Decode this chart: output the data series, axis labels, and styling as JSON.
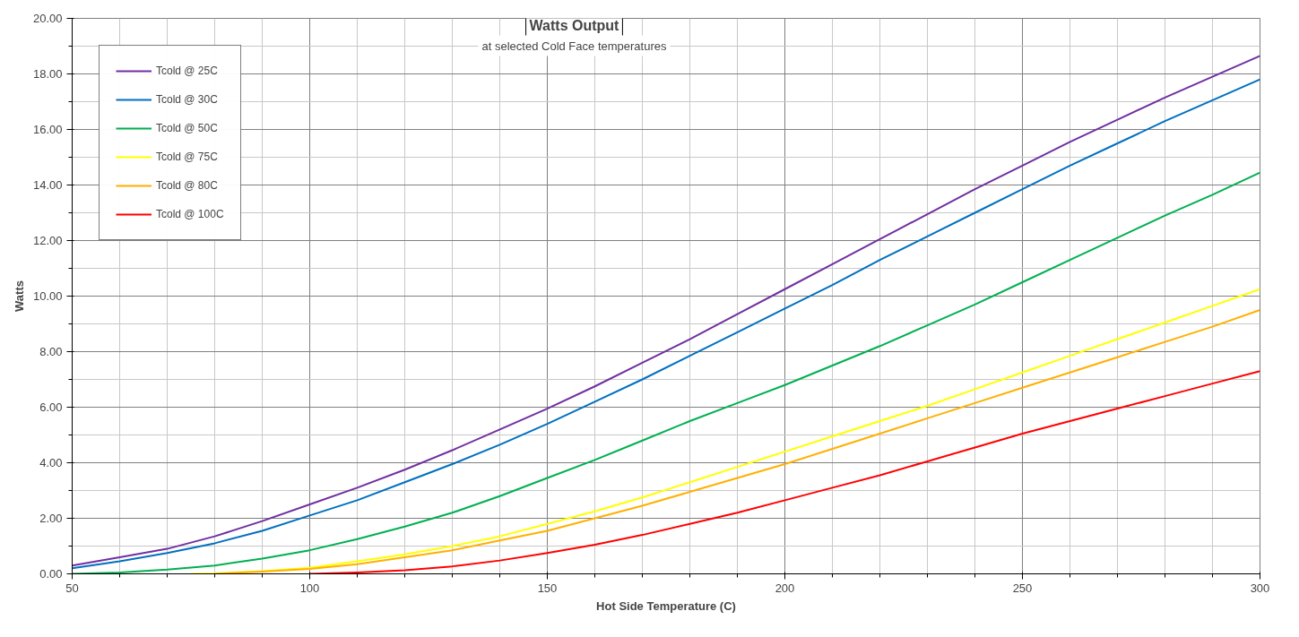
{
  "chart_data": {
    "type": "line",
    "title": "Watts Output",
    "subtitle": "at selected Cold Face temperatures",
    "xlabel": "Hot Side Temperature (C)",
    "ylabel": "Watts",
    "xlim": [
      50,
      300
    ],
    "xticks": [
      50,
      100,
      150,
      200,
      250,
      300
    ],
    "ylim": [
      0,
      20
    ],
    "yticks": [
      {
        "value": 0,
        "label": "0.00"
      },
      {
        "value": 2,
        "label": "2.00"
      },
      {
        "value": 4,
        "label": "4.00"
      },
      {
        "value": 6,
        "label": "6.00"
      },
      {
        "value": 8,
        "label": "8.00"
      },
      {
        "value": 10,
        "label": "10.00"
      },
      {
        "value": 12,
        "label": "12.00"
      },
      {
        "value": 14,
        "label": "14.00"
      },
      {
        "value": 16,
        "label": "16.00"
      },
      {
        "value": 18,
        "label": "18.00"
      },
      {
        "value": 20,
        "label": "20.00"
      }
    ],
    "grid": true,
    "legend": "top left",
    "marker": "none",
    "line_style": "solid",
    "series": [
      {
        "name": "Tcold @ 25C",
        "color": "#7030a0",
        "x": [
          50,
          60,
          70,
          80,
          90,
          100,
          110,
          120,
          130,
          140,
          150,
          160,
          170,
          180,
          190,
          200,
          210,
          220,
          230,
          240,
          250,
          260,
          270,
          280,
          290,
          300
        ],
        "values": [
          0.3,
          0.6,
          0.9,
          1.35,
          1.9,
          2.5,
          3.1,
          3.75,
          4.45,
          5.2,
          5.95,
          6.75,
          7.6,
          8.45,
          9.35,
          10.25,
          11.15,
          12.05,
          12.95,
          13.85,
          14.7,
          15.55,
          16.35,
          17.15,
          17.9,
          18.65
        ]
      },
      {
        "name": "Tcold @ 30C",
        "color": "#0070c0",
        "x": [
          50,
          60,
          70,
          80,
          90,
          100,
          110,
          120,
          130,
          140,
          150,
          160,
          170,
          180,
          190,
          200,
          210,
          220,
          230,
          240,
          250,
          260,
          270,
          280,
          290,
          300
        ],
        "values": [
          0.2,
          0.45,
          0.75,
          1.1,
          1.55,
          2.1,
          2.65,
          3.3,
          3.95,
          4.65,
          5.4,
          6.2,
          7.0,
          7.85,
          8.7,
          9.55,
          10.4,
          11.3,
          12.15,
          13.0,
          13.85,
          14.7,
          15.5,
          16.3,
          17.05,
          17.8
        ]
      },
      {
        "name": "Tcold @ 50C",
        "color": "#00b050",
        "x": [
          50,
          60,
          70,
          80,
          90,
          100,
          110,
          120,
          130,
          140,
          150,
          160,
          170,
          180,
          190,
          200,
          210,
          220,
          230,
          240,
          250,
          260,
          270,
          280,
          290,
          300
        ],
        "values": [
          0.0,
          0.05,
          0.15,
          0.3,
          0.55,
          0.85,
          1.25,
          1.7,
          2.2,
          2.8,
          3.45,
          4.1,
          4.8,
          5.5,
          6.15,
          6.8,
          7.5,
          8.2,
          8.95,
          9.7,
          10.5,
          11.3,
          12.1,
          12.9,
          13.65,
          14.45
        ]
      },
      {
        "name": "Tcold @ 75C",
        "color": "#ffff00",
        "x": [
          75,
          80,
          90,
          100,
          110,
          120,
          130,
          140,
          150,
          160,
          170,
          180,
          190,
          200,
          210,
          220,
          230,
          240,
          250,
          260,
          270,
          280,
          290,
          300
        ],
        "values": [
          0,
          0.02,
          0.1,
          0.22,
          0.45,
          0.7,
          1.0,
          1.35,
          1.8,
          2.25,
          2.75,
          3.3,
          3.85,
          4.4,
          4.95,
          5.5,
          6.05,
          6.65,
          7.25,
          7.85,
          8.45,
          9.05,
          9.65,
          10.25
        ]
      },
      {
        "name": "Tcold @ 80C",
        "color": "#ffb000",
        "x": [
          80,
          90,
          100,
          110,
          120,
          130,
          140,
          150,
          160,
          170,
          180,
          190,
          200,
          210,
          220,
          230,
          240,
          250,
          260,
          270,
          280,
          290,
          300
        ],
        "values": [
          0,
          0.08,
          0.18,
          0.35,
          0.6,
          0.85,
          1.2,
          1.55,
          2.0,
          2.45,
          2.95,
          3.45,
          3.95,
          4.5,
          5.05,
          5.6,
          6.15,
          6.7,
          7.25,
          7.8,
          8.35,
          8.9,
          9.5
        ]
      },
      {
        "name": "Tcold @ 100C",
        "color": "#ff0000",
        "x": [
          100,
          110,
          120,
          130,
          140,
          150,
          160,
          170,
          180,
          190,
          200,
          210,
          220,
          230,
          240,
          250,
          260,
          270,
          280,
          290,
          300
        ],
        "values": [
          0,
          0.05,
          0.13,
          0.27,
          0.48,
          0.75,
          1.05,
          1.4,
          1.8,
          2.2,
          2.65,
          3.1,
          3.55,
          4.05,
          4.55,
          5.05,
          5.5,
          5.95,
          6.4,
          6.85,
          7.3
        ]
      }
    ]
  }
}
